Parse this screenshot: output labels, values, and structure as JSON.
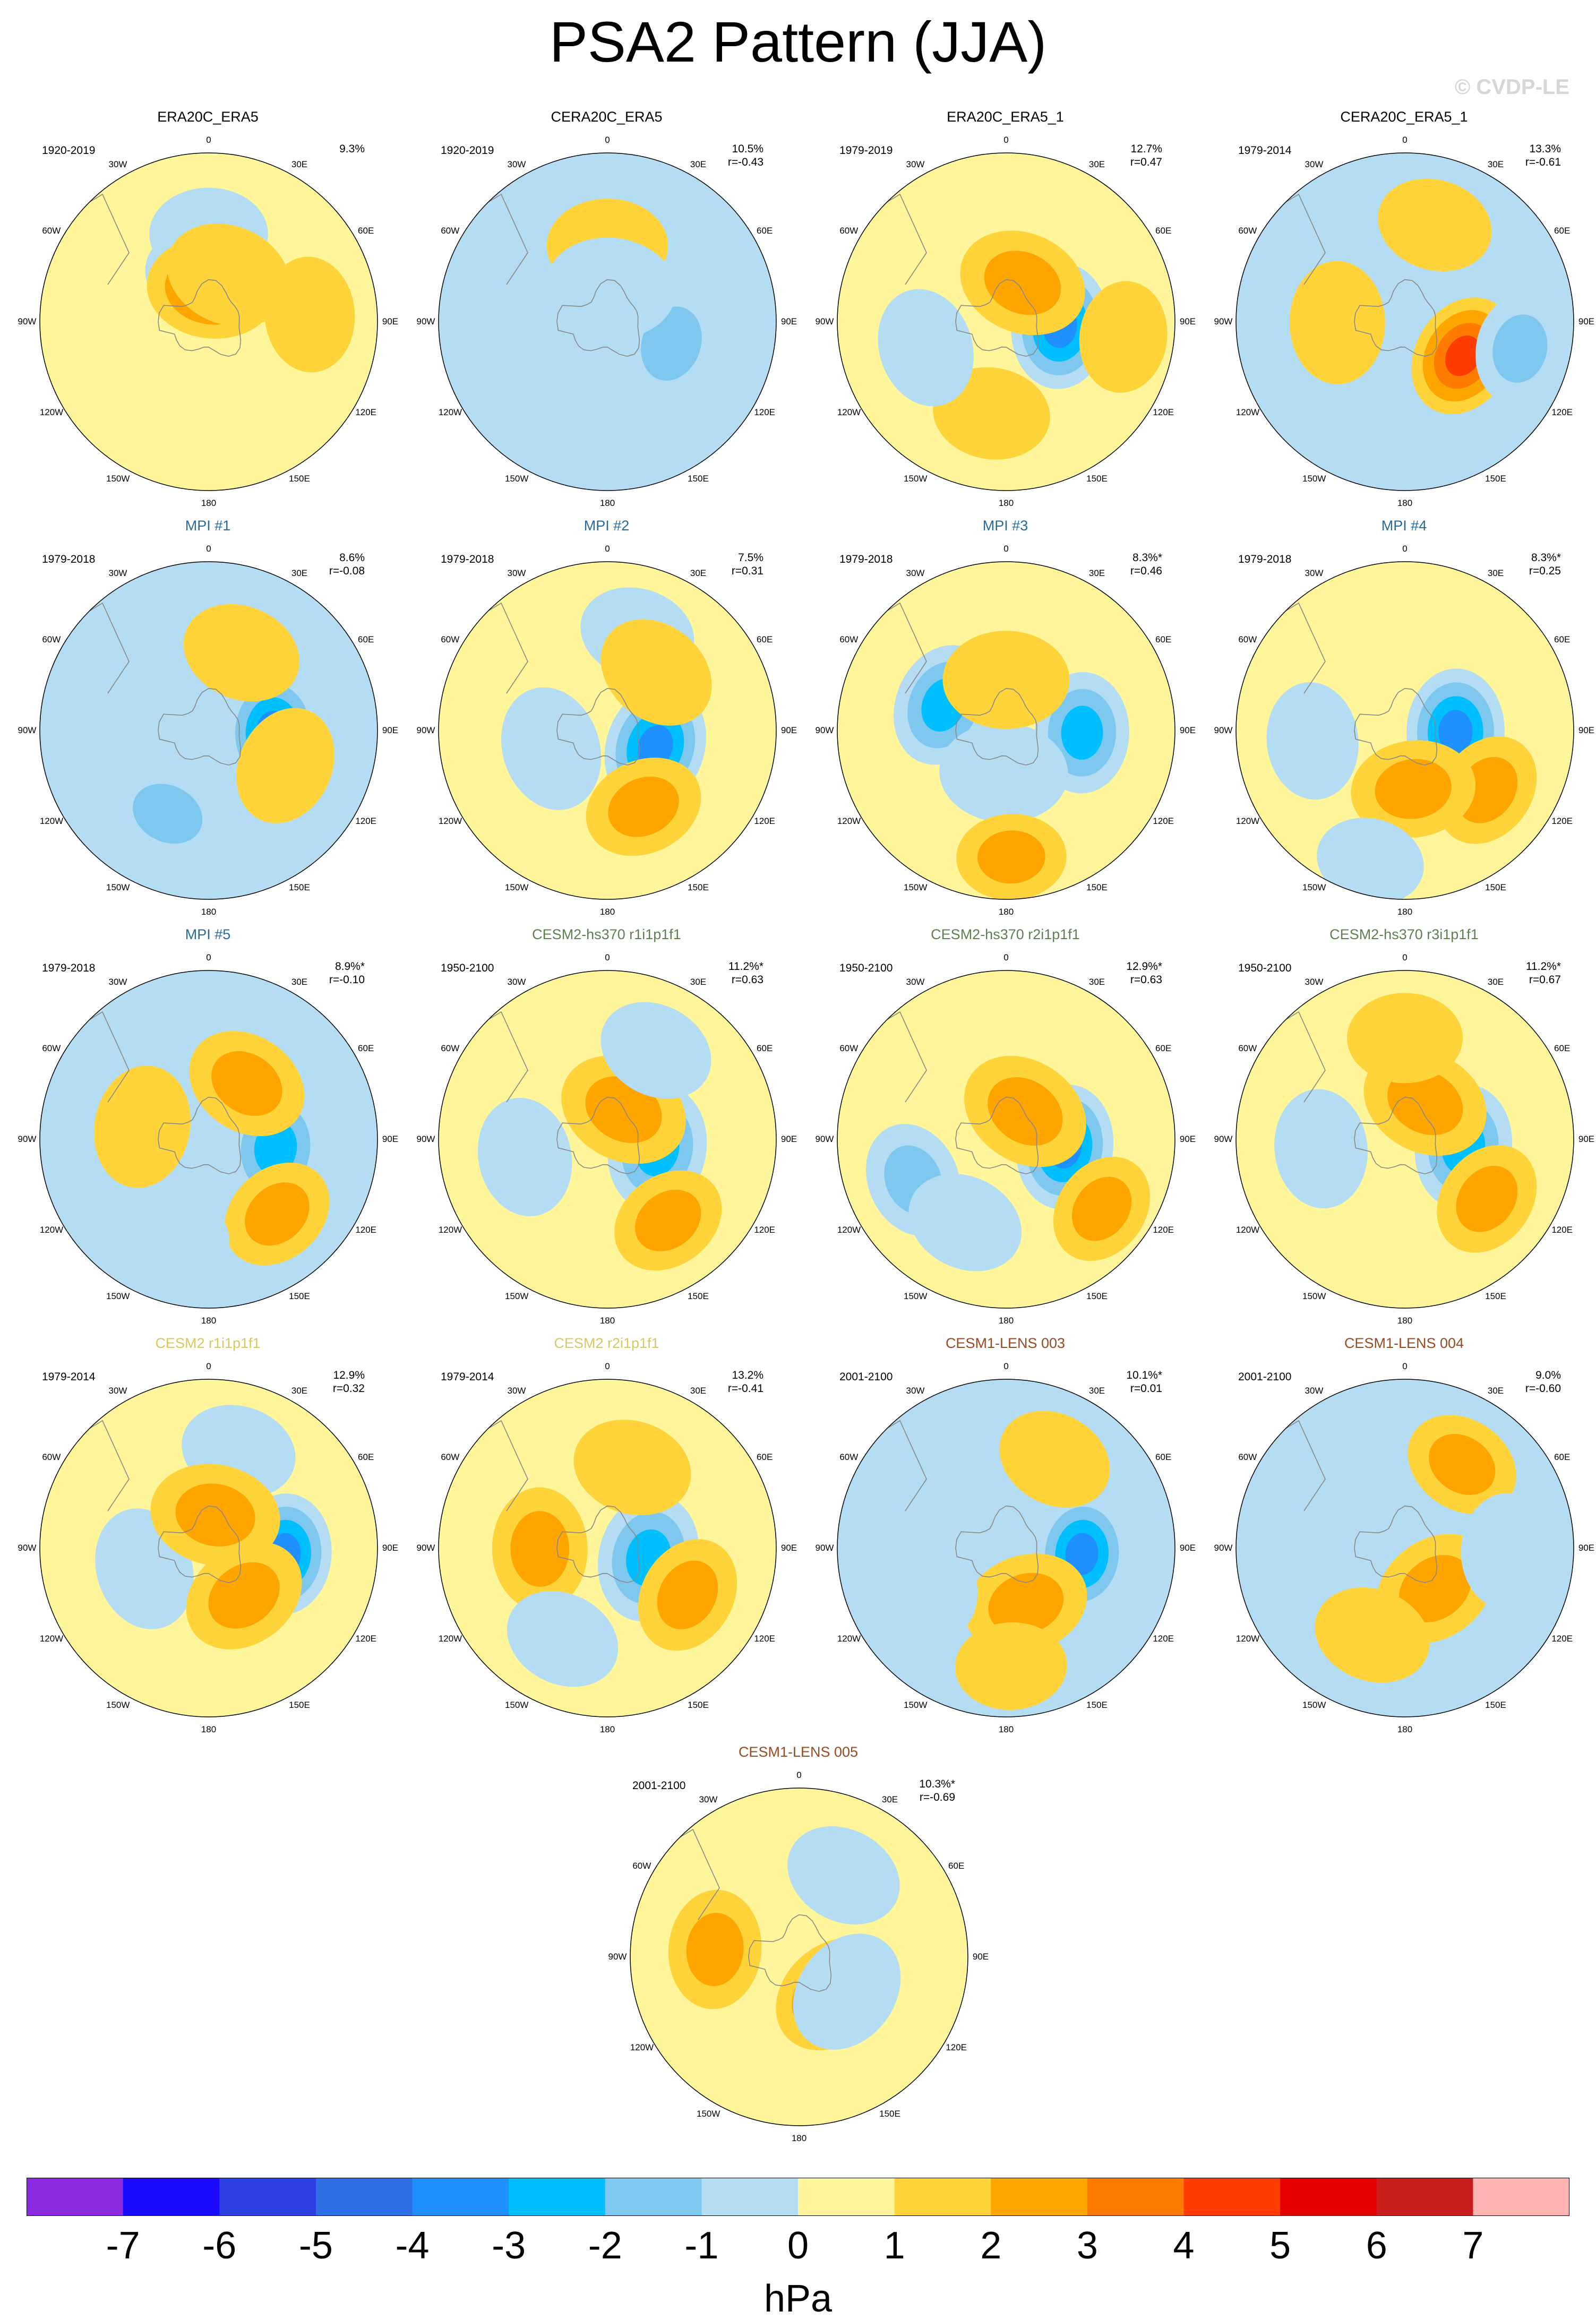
{
  "title": "PSA2 Pattern (JJA)",
  "watermark": "© CVDP-LE",
  "projection": "south-polar-stereographic",
  "lon_labels": [
    "0",
    "30E",
    "60E",
    "90E",
    "120E",
    "150E",
    "180",
    "150W",
    "120W",
    "90W",
    "60W",
    "30W"
  ],
  "colors": {
    "obs_title": "#000000",
    "mpi_title": "#2a6a9a",
    "cesm2_hs370_title": "#5f7f52",
    "cesm2_title": "#d8c860",
    "cesm1_title": "#9a4a22",
    "land_outline": "#888888"
  },
  "panels": [
    {
      "title": "ERA20C_ERA5",
      "period": "1920-2019",
      "pct": "9.3%",
      "r": "",
      "group": "obs"
    },
    {
      "title": "CERA20C_ERA5",
      "period": "1920-2019",
      "pct": "10.5%",
      "r": "r=-0.43",
      "group": "obs"
    },
    {
      "title": "ERA20C_ERA5_1",
      "period": "1979-2019",
      "pct": "12.7%",
      "r": "r=0.47",
      "group": "obs"
    },
    {
      "title": "CERA20C_ERA5_1",
      "period": "1979-2014",
      "pct": "13.3%",
      "r": "r=-0.61",
      "group": "obs"
    },
    {
      "title": "MPI #1",
      "period": "1979-2018",
      "pct": "8.6%",
      "r": "r=-0.08",
      "group": "mpi"
    },
    {
      "title": "MPI #2",
      "period": "1979-2018",
      "pct": "7.5%",
      "r": "r=0.31",
      "group": "mpi"
    },
    {
      "title": "MPI #3",
      "period": "1979-2018",
      "pct": "8.3%*",
      "r": "r=0.46",
      "group": "mpi"
    },
    {
      "title": "MPI #4",
      "period": "1979-2018",
      "pct": "8.3%*",
      "r": "r=0.25",
      "group": "mpi"
    },
    {
      "title": "MPI #5",
      "period": "1979-2018",
      "pct": "8.9%*",
      "r": "r=-0.10",
      "group": "mpi"
    },
    {
      "title": "CESM2-hs370 r1i1p1f1",
      "period": "1950-2100",
      "pct": "11.2%*",
      "r": "r=0.63",
      "group": "cesm2_hs370"
    },
    {
      "title": "CESM2-hs370 r2i1p1f1",
      "period": "1950-2100",
      "pct": "12.9%*",
      "r": "r=0.63",
      "group": "cesm2_hs370"
    },
    {
      "title": "CESM2-hs370 r3i1p1f1",
      "period": "1950-2100",
      "pct": "11.2%*",
      "r": "r=0.67",
      "group": "cesm2_hs370"
    },
    {
      "title": "CESM2 r1i1p1f1",
      "period": "1979-2014",
      "pct": "12.9%",
      "r": "r=0.32",
      "group": "cesm2"
    },
    {
      "title": "CESM2 r2i1p1f1",
      "period": "1979-2014",
      "pct": "13.2%",
      "r": "r=-0.41",
      "group": "cesm2"
    },
    {
      "title": "CESM1-LENS 003",
      "period": "2001-2100",
      "pct": "10.1%*",
      "r": "r=0.01",
      "group": "cesm1"
    },
    {
      "title": "CESM1-LENS 004",
      "period": "2001-2100",
      "pct": "9.0%",
      "r": "r=-0.60",
      "group": "cesm1"
    },
    {
      "title": "CESM1-LENS 005",
      "period": "2001-2100",
      "pct": "10.3%*",
      "r": "r=-0.69",
      "group": "cesm1"
    }
  ],
  "patterns": [
    {
      "bg": 0,
      "blobs": [
        [
          0,
          0.52,
          -1
        ],
        [
          0,
          0.3,
          -1
        ],
        [
          0.1,
          0.2,
          3
        ],
        [
          0.4,
          0.3,
          1
        ],
        [
          1.5,
          0.6,
          1
        ]
      ]
    },
    {
      "bg": -1,
      "blobs": [
        [
          0,
          0.45,
          1
        ],
        [
          1.9,
          0.4,
          -2
        ],
        [
          3.4,
          0.45,
          -1
        ],
        [
          0.1,
          0.2,
          -1
        ]
      ]
    },
    {
      "bg": 0,
      "blobs": [
        [
          1.65,
          0.32,
          -4
        ],
        [
          0.4,
          0.25,
          2
        ],
        [
          1.7,
          0.7,
          1
        ],
        [
          3.3,
          0.55,
          1
        ],
        [
          4.4,
          0.5,
          -1
        ]
      ]
    },
    {
      "bg": -1,
      "blobs": [
        [
          2.1,
          0.4,
          4
        ],
        [
          1.8,
          0.7,
          -2
        ],
        [
          4.7,
          0.4,
          1
        ],
        [
          0.3,
          0.6,
          1
        ]
      ]
    },
    {
      "bg": -1,
      "blobs": [
        [
          1.6,
          0.38,
          -4
        ],
        [
          0.4,
          0.5,
          1
        ],
        [
          3.6,
          0.55,
          -2
        ],
        [
          2.0,
          0.5,
          1
        ]
      ]
    },
    {
      "bg": 0,
      "blobs": [
        [
          1.9,
          0.3,
          -4
        ],
        [
          2.7,
          0.5,
          2
        ],
        [
          0.3,
          0.6,
          -1
        ],
        [
          4.4,
          0.35,
          -1
        ],
        [
          0.7,
          0.45,
          1
        ]
      ]
    },
    {
      "bg": 0,
      "blobs": [
        [
          1.6,
          0.45,
          -3
        ],
        [
          5.1,
          0.4,
          -3
        ],
        [
          3.2,
          0.25,
          -1
        ],
        [
          0,
          0.3,
          1
        ],
        [
          3.1,
          0.75,
          2
        ]
      ]
    },
    {
      "bg": 0,
      "blobs": [
        [
          1.6,
          0.3,
          -4
        ],
        [
          2.2,
          0.6,
          2
        ],
        [
          3.0,
          0.35,
          2
        ],
        [
          4.6,
          0.55,
          -1
        ],
        [
          3.4,
          0.8,
          -1
        ]
      ]
    },
    {
      "bg": -1,
      "blobs": [
        [
          1.7,
          0.4,
          -3
        ],
        [
          0.6,
          0.4,
          2
        ],
        [
          2.4,
          0.6,
          2
        ],
        [
          3.5,
          0.6,
          -1
        ],
        [
          4.9,
          0.4,
          1
        ]
      ]
    },
    {
      "bg": 0,
      "blobs": [
        [
          1.75,
          0.3,
          -3
        ],
        [
          0.5,
          0.2,
          2
        ],
        [
          2.5,
          0.6,
          2
        ],
        [
          0.5,
          0.6,
          -1
        ],
        [
          4.5,
          0.5,
          -1
        ]
      ]
    },
    {
      "bg": 0,
      "blobs": [
        [
          1.7,
          0.35,
          -4
        ],
        [
          0.6,
          0.2,
          2
        ],
        [
          2.2,
          0.7,
          2
        ],
        [
          4.3,
          0.6,
          -2
        ],
        [
          3.6,
          0.55,
          -1
        ]
      ]
    },
    {
      "bg": 0,
      "blobs": [
        [
          1.7,
          0.35,
          -3
        ],
        [
          0.5,
          0.25,
          2
        ],
        [
          2.2,
          0.6,
          2
        ],
        [
          4.6,
          0.5,
          -1
        ],
        [
          0,
          0.6,
          1
        ]
      ]
    },
    {
      "bg": 0,
      "blobs": [
        [
          1.65,
          0.45,
          -4
        ],
        [
          0.3,
          0.6,
          -1
        ],
        [
          4.4,
          0.4,
          -1
        ],
        [
          2.5,
          0.35,
          2
        ],
        [
          0.2,
          0.2,
          2
        ]
      ]
    },
    {
      "bg": 0,
      "blobs": [
        [
          1.8,
          0.25,
          -3
        ],
        [
          0.3,
          0.5,
          1
        ],
        [
          4.7,
          0.4,
          2
        ],
        [
          2.1,
          0.55,
          2
        ],
        [
          3.6,
          0.6,
          -1
        ]
      ]
    },
    {
      "bg": -1,
      "blobs": [
        [
          1.65,
          0.45,
          -4
        ],
        [
          2.8,
          0.35,
          2
        ],
        [
          0.5,
          0.6,
          1
        ],
        [
          4.3,
          0.5,
          -1
        ],
        [
          3.1,
          0.7,
          1
        ]
      ]
    },
    {
      "bg": -1,
      "blobs": [
        [
          0.6,
          0.6,
          2
        ],
        [
          2.5,
          0.3,
          2
        ],
        [
          1.6,
          0.6,
          -1
        ],
        [
          3.5,
          0.55,
          1
        ],
        [
          5.4,
          0.5,
          -1
        ]
      ]
    },
    {
      "bg": 0,
      "blobs": [
        [
          2.4,
          0.3,
          3
        ],
        [
          2.2,
          0.35,
          -1
        ],
        [
          4.8,
          0.5,
          2
        ],
        [
          0.5,
          0.55,
          -1
        ]
      ]
    }
  ],
  "colorbar": {
    "units": "hPa",
    "labels": [
      "-7",
      "-6",
      "-5",
      "-4",
      "-3",
      "-2",
      "-1",
      "0",
      "1",
      "2",
      "3",
      "4",
      "5",
      "6",
      "7"
    ],
    "colors": [
      "#8a2be2",
      "#1a0aff",
      "#2b3fe0",
      "#2f6fe6",
      "#1e90ff",
      "#00bfff",
      "#7ec8f0",
      "#b4dcf2",
      "#fff59a",
      "#ffd43b",
      "#ffa500",
      "#ff7b00",
      "#ff3c00",
      "#e60000",
      "#c81e1e",
      "#ffb4b4"
    ]
  }
}
